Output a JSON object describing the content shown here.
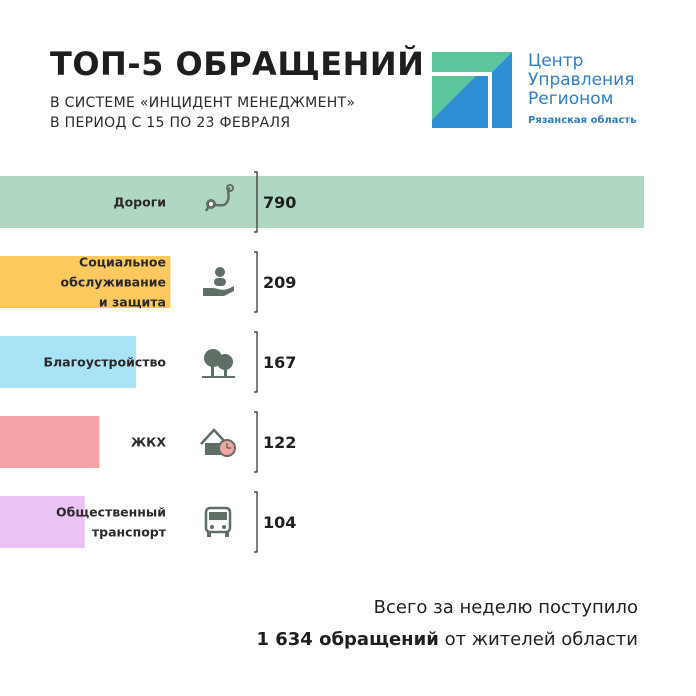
{
  "header": {
    "title": "ТОП-5 ОБРАЩЕНИЙ",
    "subtitle_line1": "В СИСТЕМЕ «ИНЦИДЕНТ МЕНЕДЖМЕНТ»",
    "subtitle_line2": "В ПЕРИОД С 15 ПО 23 ФЕВРАЛЯ"
  },
  "org": {
    "line1": "Центр",
    "line2": "Управления",
    "line3": "Регионом",
    "region": "Рязанская область",
    "logo_icon": "cur-logo-icon",
    "colors": {
      "text": "#2f7dc0",
      "logo_green": "#5bc69c",
      "logo_blue": "#2f8fd6"
    }
  },
  "chart_data": {
    "type": "bar",
    "orientation": "horizontal",
    "categories": [
      [
        "Дороги"
      ],
      [
        "Социальное",
        "обслуживание",
        "и защита"
      ],
      [
        "Благоустройство"
      ],
      [
        "ЖКХ"
      ],
      [
        "Общественный",
        "транспорт"
      ]
    ],
    "values": [
      790,
      209,
      167,
      122,
      104
    ],
    "colors": [
      "#b0d7c2",
      "#fbc95e",
      "#a8e3f6",
      "#f5a3a6",
      "#ebc2f5"
    ],
    "icons": [
      "road-route-icon",
      "social-care-icon",
      "trees-icon",
      "housing-24-icon",
      "bus-icon"
    ],
    "icon_color": "#5f6f66",
    "title": "",
    "xlabel": "",
    "ylabel": ""
  },
  "footer": {
    "line1": "Всего за неделю поступило",
    "total": "1 634 обращений",
    "rest": " от жителей области"
  }
}
